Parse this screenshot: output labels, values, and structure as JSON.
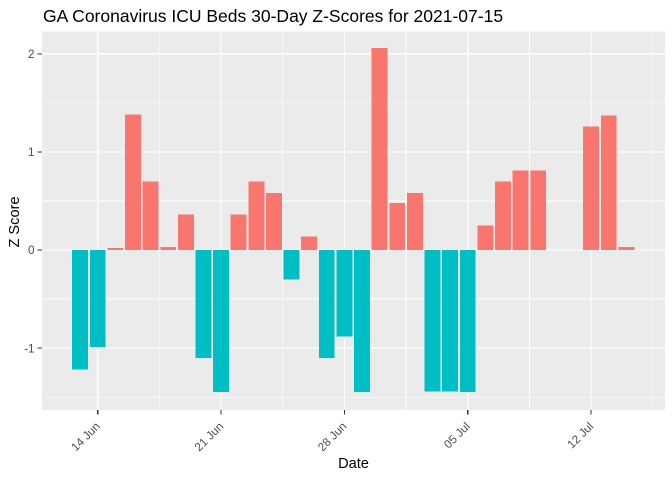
{
  "chart_data": {
    "type": "bar",
    "title": "GA Coronavirus ICU Beds 30-Day Z-Scores for 2021-07-15",
    "xlabel": "Date",
    "ylabel": "Z Score",
    "grid": true,
    "legend": false,
    "ylim": [
      -1.63,
      2.24
    ],
    "xlim": [
      "2021-06-11",
      "2021-07-16"
    ],
    "y_ticks": [
      2,
      1,
      0,
      -1
    ],
    "y_minor_gridlines": [
      1.5,
      0.5,
      -0.5,
      -1.5
    ],
    "x_ticks": [
      {
        "date": "2021-06-14",
        "label": "14 Jun"
      },
      {
        "date": "2021-06-21",
        "label": "21 Jun"
      },
      {
        "date": "2021-06-28",
        "label": "28 Jun"
      },
      {
        "date": "2021-07-05",
        "label": "05 Jul"
      },
      {
        "date": "2021-07-12",
        "label": "12 Jul"
      }
    ],
    "points": [
      {
        "date": "2021-06-13",
        "z": -1.22
      },
      {
        "date": "2021-06-14",
        "z": -0.99
      },
      {
        "date": "2021-06-15",
        "z": 0.02
      },
      {
        "date": "2021-06-16",
        "z": 1.38
      },
      {
        "date": "2021-06-17",
        "z": 0.7
      },
      {
        "date": "2021-06-18",
        "z": 0.03
      },
      {
        "date": "2021-06-19",
        "z": 0.36
      },
      {
        "date": "2021-06-20",
        "z": -1.1
      },
      {
        "date": "2021-06-21",
        "z": -1.45
      },
      {
        "date": "2021-06-22",
        "z": 0.36
      },
      {
        "date": "2021-06-23",
        "z": 0.7
      },
      {
        "date": "2021-06-24",
        "z": 0.58
      },
      {
        "date": "2021-06-25",
        "z": -0.3
      },
      {
        "date": "2021-06-26",
        "z": 0.14
      },
      {
        "date": "2021-06-27",
        "z": -1.1
      },
      {
        "date": "2021-06-28",
        "z": -0.88
      },
      {
        "date": "2021-06-29",
        "z": -1.45
      },
      {
        "date": "2021-06-30",
        "z": 2.06
      },
      {
        "date": "2021-07-01",
        "z": 0.48
      },
      {
        "date": "2021-07-02",
        "z": 0.58
      },
      {
        "date": "2021-07-03",
        "z": -1.44
      },
      {
        "date": "2021-07-04",
        "z": -1.44
      },
      {
        "date": "2021-07-05",
        "z": -1.45
      },
      {
        "date": "2021-07-06",
        "z": 0.25
      },
      {
        "date": "2021-07-07",
        "z": 0.7
      },
      {
        "date": "2021-07-08",
        "z": 0.81
      },
      {
        "date": "2021-07-09",
        "z": 0.81
      },
      {
        "date": "2021-07-12",
        "z": 1.26
      },
      {
        "date": "2021-07-13",
        "z": 1.37
      },
      {
        "date": "2021-07-14",
        "z": 0.03
      }
    ],
    "colors": {
      "positive_bar": "#F8766D",
      "negative_bar": "#00BFC4",
      "panel_background": "#EBEBEB",
      "gridline": "#FFFFFF",
      "tick_label": "#4D4D4D",
      "tick_mark": "#333333",
      "axis_title": "#000000",
      "title": "#000000",
      "plot_background": "#FFFFFF"
    }
  }
}
